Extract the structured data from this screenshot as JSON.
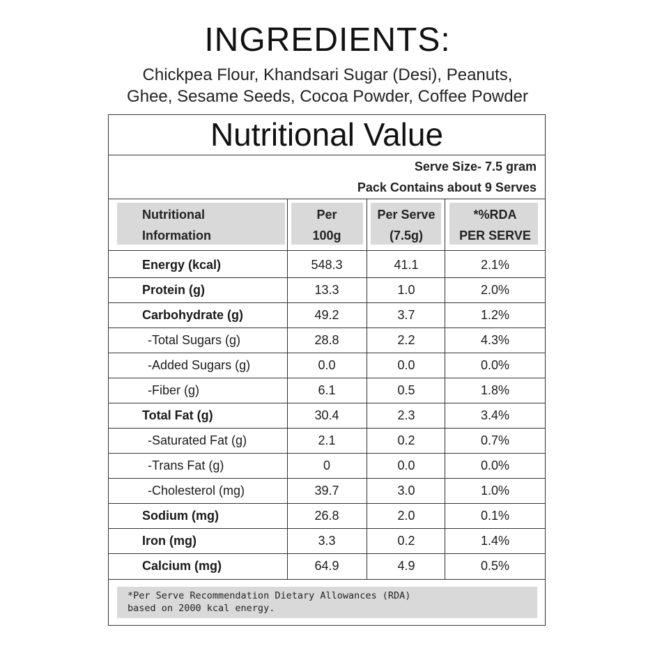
{
  "ingredients": {
    "title": "INGREDIENTS:",
    "lines": [
      "Chickpea Flour, Khandsari Sugar (Desi), Peanuts,",
      "Ghee, Sesame Seeds, Cocoa Powder, Coffee Powder"
    ]
  },
  "nutrition": {
    "title": "Nutritional Value",
    "serve_size": "Serve Size- 7.5 gram",
    "pack_contains": "Pack Contains about 9 Serves",
    "headers": [
      [
        "Nutritional",
        "Information"
      ],
      [
        "Per",
        "100g"
      ],
      [
        "Per Serve",
        "(7.5g)"
      ],
      [
        "*%RDA",
        "PER SERVE"
      ]
    ],
    "rows": [
      {
        "name": "Energy (kcal)",
        "sub": false,
        "per100": "548.3",
        "perServe": "41.1",
        "rda": "2.1%"
      },
      {
        "name": "Protein (g)",
        "sub": false,
        "per100": "13.3",
        "perServe": "1.0",
        "rda": "2.0%"
      },
      {
        "name": "Carbohydrate (g)",
        "sub": false,
        "per100": "49.2",
        "perServe": "3.7",
        "rda": "1.2%"
      },
      {
        "name": "-Total Sugars (g)",
        "sub": true,
        "per100": "28.8",
        "perServe": "2.2",
        "rda": "4.3%"
      },
      {
        "name": "-Added Sugars (g)",
        "sub": true,
        "per100": "0.0",
        "perServe": "0.0",
        "rda": "0.0%"
      },
      {
        "name": "-Fiber (g)",
        "sub": true,
        "per100": "6.1",
        "perServe": "0.5",
        "rda": "1.8%"
      },
      {
        "name": "Total Fat (g)",
        "sub": false,
        "per100": "30.4",
        "perServe": "2.3",
        "rda": "3.4%"
      },
      {
        "name": "-Saturated Fat (g)",
        "sub": true,
        "per100": "2.1",
        "perServe": "0.2",
        "rda": "0.7%"
      },
      {
        "name": "-Trans Fat (g)",
        "sub": true,
        "per100": "0",
        "perServe": "0.0",
        "rda": "0.0%"
      },
      {
        "name": "-Cholesterol (mg)",
        "sub": true,
        "per100": "39.7",
        "perServe": "3.0",
        "rda": "1.0%"
      },
      {
        "name": "Sodium (mg)",
        "sub": false,
        "per100": "26.8",
        "perServe": "2.0",
        "rda": "0.1%"
      },
      {
        "name": "Iron (mg)",
        "sub": false,
        "per100": "3.3",
        "perServe": "0.2",
        "rda": "1.4%"
      },
      {
        "name": "Calcium (mg)",
        "sub": false,
        "per100": "64.9",
        "perServe": "4.9",
        "rda": "0.5%"
      }
    ],
    "footnote": [
      "*Per Serve Recommendation Dietary Allowances (RDA)",
      "based on 2000 kcal energy."
    ]
  }
}
